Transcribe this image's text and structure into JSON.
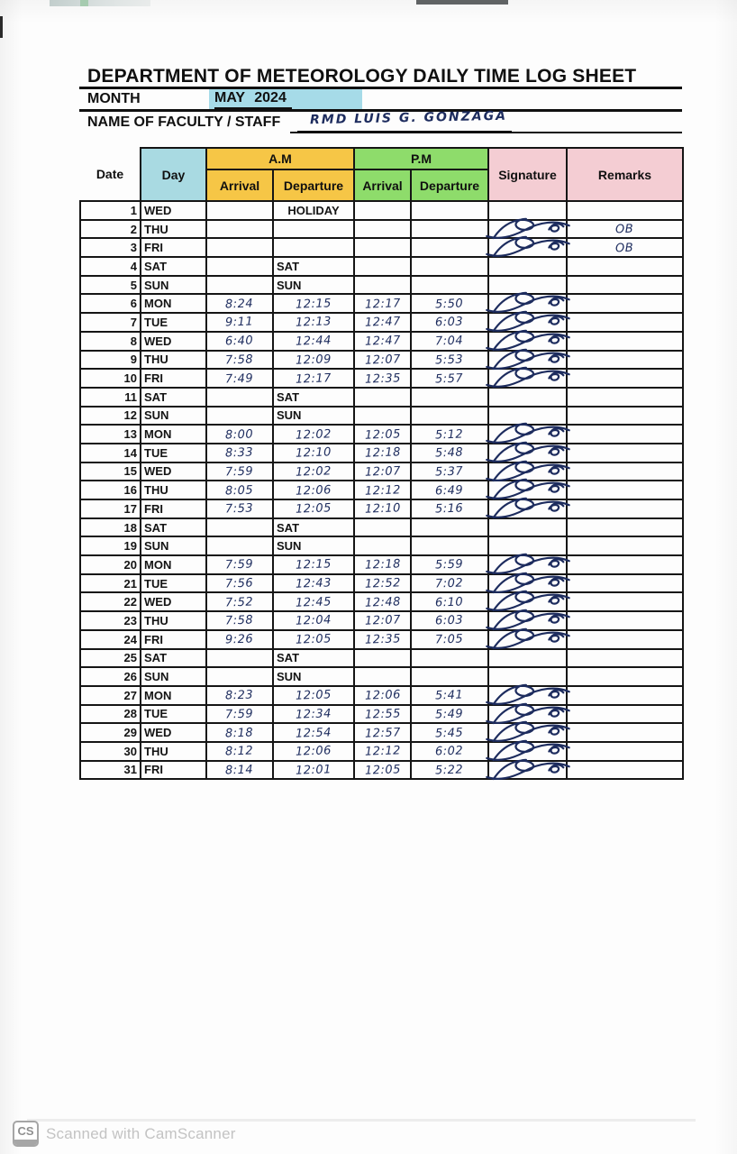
{
  "page": {
    "title": "DEPARTMENT OF METEOROLOGY DAILY TIME LOG SHEET",
    "month_label": "MONTH",
    "month_value": "MAY 2024",
    "name_label": "NAME OF FACULTY / STAFF",
    "name_value": "RMD LUIS G. GONZAGA"
  },
  "table": {
    "headers": {
      "date": "Date",
      "day": "Day",
      "am": "A.M",
      "pm": "P.M",
      "arrival": "Arrival",
      "departure": "Departure",
      "signature": "Signature",
      "remarks": "Remarks"
    },
    "rows": [
      {
        "date": "1",
        "day": "WED",
        "am_arrival": "",
        "am_departure": "HOLIDAY",
        "pm_arrival": "",
        "pm_departure": "",
        "signature": false,
        "remarks": "",
        "tone": "holiday"
      },
      {
        "date": "2",
        "day": "THU",
        "am_arrival": "",
        "am_departure": "",
        "pm_arrival": "",
        "pm_departure": "",
        "signature": true,
        "remarks": "OB",
        "tone": "normal"
      },
      {
        "date": "3",
        "day": "FRI",
        "am_arrival": "",
        "am_departure": "",
        "pm_arrival": "",
        "pm_departure": "",
        "signature": true,
        "remarks": "OB",
        "tone": "normal"
      },
      {
        "date": "4",
        "day": "SAT",
        "am_arrival": "",
        "am_departure": "SAT",
        "pm_arrival": "",
        "pm_departure": "",
        "signature": false,
        "remarks": "",
        "tone": "sat"
      },
      {
        "date": "5",
        "day": "SUN",
        "am_arrival": "",
        "am_departure": "SUN",
        "pm_arrival": "",
        "pm_departure": "",
        "signature": false,
        "remarks": "",
        "tone": "sun"
      },
      {
        "date": "6",
        "day": "MON",
        "am_arrival": "8:24",
        "am_departure": "12:15",
        "pm_arrival": "12:17",
        "pm_departure": "5:50",
        "signature": true,
        "remarks": "",
        "tone": "normal"
      },
      {
        "date": "7",
        "day": "TUE",
        "am_arrival": "9:11",
        "am_departure": "12:13",
        "pm_arrival": "12:47",
        "pm_departure": "6:03",
        "signature": true,
        "remarks": "",
        "tone": "normal"
      },
      {
        "date": "8",
        "day": "WED",
        "am_arrival": "6:40",
        "am_departure": "12:44",
        "pm_arrival": "12:47",
        "pm_departure": "7:04",
        "signature": true,
        "remarks": "",
        "tone": "normal"
      },
      {
        "date": "9",
        "day": "THU",
        "am_arrival": "7:58",
        "am_departure": "12:09",
        "pm_arrival": "12:07",
        "pm_departure": "5:53",
        "signature": true,
        "remarks": "",
        "tone": "normal"
      },
      {
        "date": "10",
        "day": "FRI",
        "am_arrival": "7:49",
        "am_departure": "12:17",
        "pm_arrival": "12:35",
        "pm_departure": "5:57",
        "signature": true,
        "remarks": "",
        "tone": "normal"
      },
      {
        "date": "11",
        "day": "SAT",
        "am_arrival": "",
        "am_departure": "SAT",
        "pm_arrival": "",
        "pm_departure": "",
        "signature": false,
        "remarks": "",
        "tone": "sat"
      },
      {
        "date": "12",
        "day": "SUN",
        "am_arrival": "",
        "am_departure": "SUN",
        "pm_arrival": "",
        "pm_departure": "",
        "signature": false,
        "remarks": "",
        "tone": "sun"
      },
      {
        "date": "13",
        "day": "MON",
        "am_arrival": "8:00",
        "am_departure": "12:02",
        "pm_arrival": "12:05",
        "pm_departure": "5:12",
        "signature": true,
        "remarks": "",
        "tone": "normal"
      },
      {
        "date": "14",
        "day": "TUE",
        "am_arrival": "8:33",
        "am_departure": "12:10",
        "pm_arrival": "12:18",
        "pm_departure": "5:48",
        "signature": true,
        "remarks": "",
        "tone": "normal"
      },
      {
        "date": "15",
        "day": "WED",
        "am_arrival": "7:59",
        "am_departure": "12:02",
        "pm_arrival": "12:07",
        "pm_departure": "5:37",
        "signature": true,
        "remarks": "",
        "tone": "normal"
      },
      {
        "date": "16",
        "day": "THU",
        "am_arrival": "8:05",
        "am_departure": "12:06",
        "pm_arrival": "12:12",
        "pm_departure": "6:49",
        "signature": true,
        "remarks": "",
        "tone": "normal"
      },
      {
        "date": "17",
        "day": "FRI",
        "am_arrival": "7:53",
        "am_departure": "12:05",
        "pm_arrival": "12:10",
        "pm_departure": "5:16",
        "signature": true,
        "remarks": "",
        "tone": "normal"
      },
      {
        "date": "18",
        "day": "SAT",
        "am_arrival": "",
        "am_departure": "SAT",
        "pm_arrival": "",
        "pm_departure": "",
        "signature": false,
        "remarks": "",
        "tone": "sat"
      },
      {
        "date": "19",
        "day": "SUN",
        "am_arrival": "",
        "am_departure": "SUN",
        "pm_arrival": "",
        "pm_departure": "",
        "signature": false,
        "remarks": "",
        "tone": "sun"
      },
      {
        "date": "20",
        "day": "MON",
        "am_arrival": "7:59",
        "am_departure": "12:15",
        "pm_arrival": "12:18",
        "pm_departure": "5:59",
        "signature": true,
        "remarks": "",
        "tone": "normal"
      },
      {
        "date": "21",
        "day": "TUE",
        "am_arrival": "7:56",
        "am_departure": "12:43",
        "pm_arrival": "12:52",
        "pm_departure": "7:02",
        "signature": true,
        "remarks": "",
        "tone": "normal"
      },
      {
        "date": "22",
        "day": "WED",
        "am_arrival": "7:52",
        "am_departure": "12:45",
        "pm_arrival": "12:48",
        "pm_departure": "6:10",
        "signature": true,
        "remarks": "",
        "tone": "normal"
      },
      {
        "date": "23",
        "day": "THU",
        "am_arrival": "7:58",
        "am_departure": "12:04",
        "pm_arrival": "12:07",
        "pm_departure": "6:03",
        "signature": true,
        "remarks": "",
        "tone": "normal"
      },
      {
        "date": "24",
        "day": "FRI",
        "am_arrival": "9:26",
        "am_departure": "12:05",
        "pm_arrival": "12:35",
        "pm_departure": "7:05",
        "signature": true,
        "remarks": "",
        "tone": "normal"
      },
      {
        "date": "25",
        "day": "SAT",
        "am_arrival": "",
        "am_departure": "SAT",
        "pm_arrival": "",
        "pm_departure": "",
        "signature": false,
        "remarks": "",
        "tone": "sat"
      },
      {
        "date": "26",
        "day": "SUN",
        "am_arrival": "",
        "am_departure": "SUN",
        "pm_arrival": "",
        "pm_departure": "",
        "signature": false,
        "remarks": "",
        "tone": "sun"
      },
      {
        "date": "27",
        "day": "MON",
        "am_arrival": "8:23",
        "am_departure": "12:05",
        "pm_arrival": "12:06",
        "pm_departure": "5:41",
        "signature": true,
        "remarks": "",
        "tone": "normal"
      },
      {
        "date": "28",
        "day": "TUE",
        "am_arrival": "7:59",
        "am_departure": "12:34",
        "pm_arrival": "12:55",
        "pm_departure": "5:49",
        "signature": true,
        "remarks": "",
        "tone": "normal"
      },
      {
        "date": "29",
        "day": "WED",
        "am_arrival": "8:18",
        "am_departure": "12:54",
        "pm_arrival": "12:57",
        "pm_departure": "5:45",
        "signature": true,
        "remarks": "",
        "tone": "normal"
      },
      {
        "date": "30",
        "day": "THU",
        "am_arrival": "8:12",
        "am_departure": "12:06",
        "pm_arrival": "12:12",
        "pm_departure": "6:02",
        "signature": true,
        "remarks": "",
        "tone": "normal"
      },
      {
        "date": "31",
        "day": "FRI",
        "am_arrival": "8:14",
        "am_departure": "12:01",
        "pm_arrival": "12:05",
        "pm_departure": "5:22",
        "signature": true,
        "remarks": "",
        "tone": "normal"
      }
    ]
  },
  "colors": {
    "day_header": "#a9dae2",
    "am_header": "#f6c646",
    "pm_header": "#8edc6b",
    "signature_remarks_header": "#f4cdd3",
    "month_highlight": "#a6dbe8",
    "handwriting_ink": "#1d2c5e",
    "holiday_sunday_text": "#8e1c1c",
    "grid_line": "#151515"
  },
  "watermark": {
    "cs": "CS",
    "text": "Scanned with CamScanner"
  }
}
